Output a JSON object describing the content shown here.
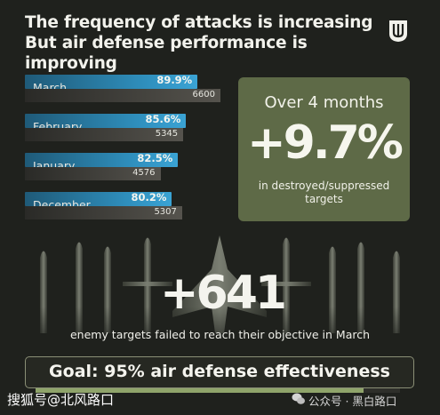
{
  "title_line1": "The frequency of attacks is increasing",
  "title_line2": "But air defense performance is improving",
  "chart_data": {
    "type": "bar",
    "categories": [
      "March",
      "February",
      "January",
      "December"
    ],
    "series": [
      {
        "values": [
          89.9,
          85.6,
          82.5,
          80.2
        ],
        "labels": [
          "89.9%",
          "85.6%",
          "82.5%",
          "80.2%"
        ]
      },
      {
        "values": [
          6600,
          5345,
          4576,
          5307
        ],
        "labels": [
          "6600",
          "5345",
          "4576",
          "5307"
        ]
      }
    ],
    "colors": [
      "#2f8fbd",
      "#55534d"
    ]
  },
  "card": {
    "top": "Over 4 months",
    "big": "+9.7%",
    "bottom": "in destroyed/suppressed targets"
  },
  "big_number": "+641",
  "caption": "enemy targets failed to reach their objective in March",
  "goal": {
    "text": "Goal: 95% air defense effectiveness",
    "progress": 0.9
  },
  "watermark_left": "搜狐号@北风路口",
  "watermark_right": "公众号 · 黑白路口"
}
